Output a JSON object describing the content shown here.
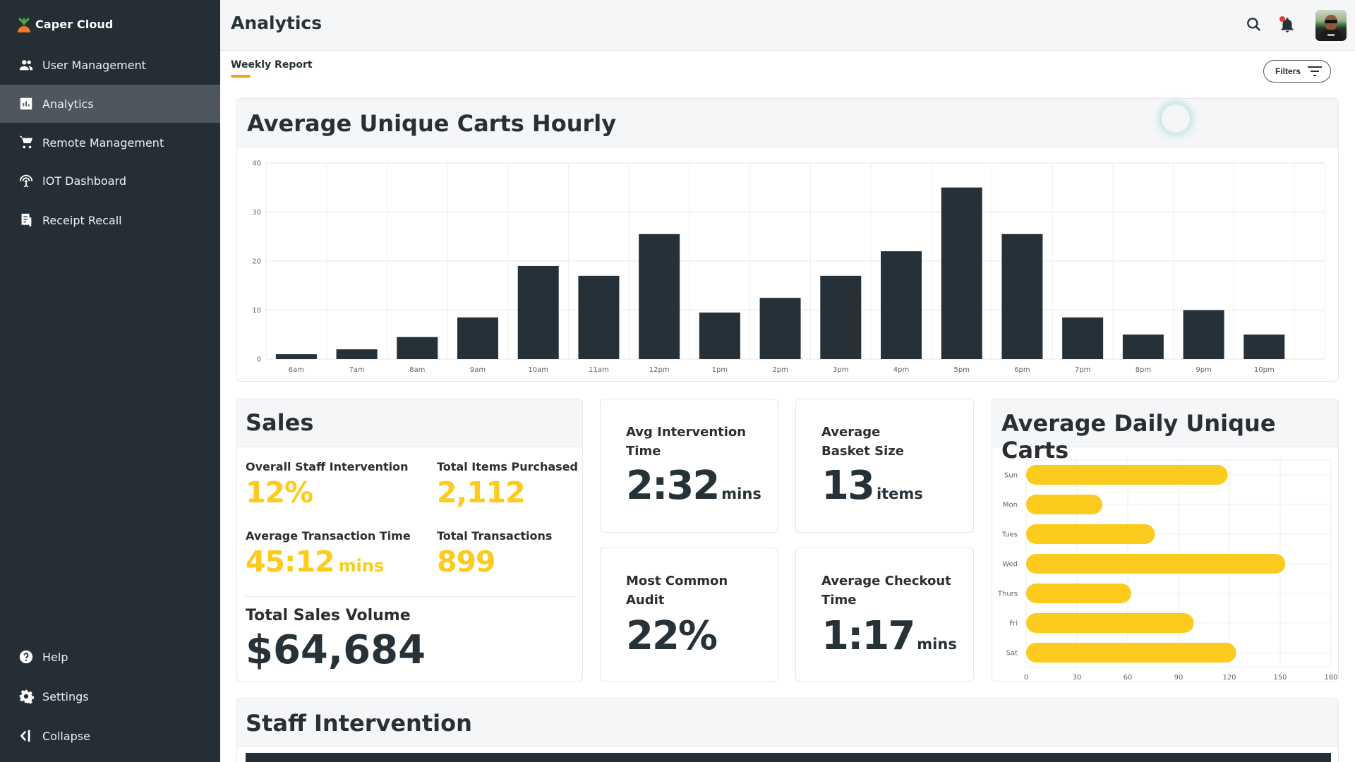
{
  "brand": {
    "name": "Caper Cloud",
    "logo_icon": "carrot-icon"
  },
  "sidebar": {
    "items": [
      {
        "label": "User Management",
        "icon": "users-icon",
        "active": false
      },
      {
        "label": "Analytics",
        "icon": "bar-chart-icon",
        "active": true
      },
      {
        "label": "Remote Management",
        "icon": "cart-icon",
        "active": false
      },
      {
        "label": "IOT Dashboard",
        "icon": "antenna-icon",
        "active": false
      },
      {
        "label": "Receipt Recall",
        "icon": "receipt-icon",
        "active": false
      }
    ],
    "bottom_items": [
      {
        "label": "Help",
        "icon": "help-icon"
      },
      {
        "label": "Settings",
        "icon": "gear-icon"
      },
      {
        "label": "Collapse",
        "icon": "collapse-icon"
      }
    ]
  },
  "header": {
    "title": "Analytics",
    "icons": [
      "search-icon",
      "bell-icon",
      "avatar"
    ],
    "notification_dot_color": "#e53935"
  },
  "tabs": [
    {
      "label": "Weekly Report",
      "active": true
    }
  ],
  "filters": {
    "label": "Filters",
    "icon": "filter-icon"
  },
  "colors": {
    "accent": "#f9a01b",
    "yellow": "#fccb1d",
    "dark": "#263238",
    "sidebar": "#252e35"
  },
  "hourly_panel": {
    "title": "Average Unique Carts Hourly"
  },
  "sales": {
    "title": "Sales",
    "stats": [
      {
        "label": "Overall Staff Intervention",
        "value": "12%",
        "unit": ""
      },
      {
        "label": "Total Items Purchased",
        "value": "2,112",
        "unit": ""
      },
      {
        "label": "Average Transaction Time",
        "value": "45:12",
        "unit": "mins"
      },
      {
        "label": "Total Transactions",
        "value": "899",
        "unit": ""
      }
    ],
    "total_label": "Total Sales Volume",
    "total_value": "$64,684"
  },
  "kpis": [
    {
      "label": "Avg Intervention Time",
      "value": "2:32",
      "unit": "mins"
    },
    {
      "label": "Average Basket Size",
      "value": "13",
      "unit": "items"
    },
    {
      "label": "Most Common Audit",
      "value": "22%",
      "unit": ""
    },
    {
      "label": "Average Checkout Time",
      "value": "1:17",
      "unit": "mins"
    }
  ],
  "daily_panel": {
    "title": "Average Daily Unique Carts"
  },
  "staff_panel": {
    "title": "Staff Intervention"
  },
  "chart_data": [
    {
      "type": "bar",
      "title": "Average Unique Carts Hourly",
      "categories": [
        "6am",
        "7am",
        "8am",
        "9am",
        "10am",
        "11am",
        "12pm",
        "1pm",
        "2pm",
        "3pm",
        "4pm",
        "5pm",
        "6pm",
        "7pm",
        "8pm",
        "9pm",
        "10pm"
      ],
      "values": [
        1,
        2,
        4.5,
        8.5,
        19,
        17,
        25.5,
        9.5,
        12.5,
        17,
        22,
        35,
        25.5,
        8.5,
        5,
        10,
        5
      ],
      "yticks": [
        0,
        10,
        20,
        30,
        40
      ],
      "ylim": [
        0,
        40
      ],
      "xlabel": "",
      "ylabel": "",
      "grid": true,
      "bar_color": "#263038"
    },
    {
      "type": "bar",
      "orientation": "horizontal",
      "title": "Average Daily Unique Carts",
      "categories": [
        "Sun",
        "Mon",
        "Tues",
        "Wed",
        "Thurs",
        "Fri",
        "Sat"
      ],
      "values": [
        119,
        45,
        76,
        153,
        62,
        99,
        124
      ],
      "xticks": [
        0,
        30,
        60,
        90,
        120,
        150,
        180
      ],
      "xlim": [
        0,
        180
      ],
      "xlabel": "",
      "ylabel": "",
      "grid": true,
      "bar_color": "#fccb1d"
    }
  ]
}
